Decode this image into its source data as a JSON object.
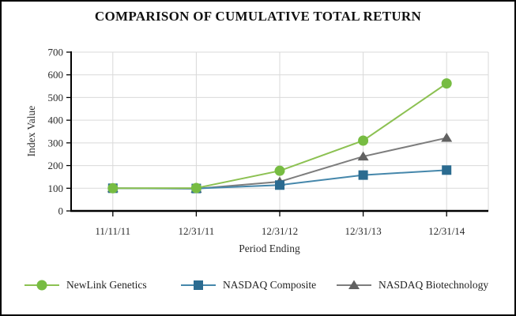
{
  "window": {
    "background": "#ffffff",
    "border_color": "#000000"
  },
  "chart_data": {
    "type": "line",
    "title": "COMPARISON OF CUMULATIVE TOTAL RETURN",
    "xlabel": "Period Ending",
    "ylabel": "Index Value",
    "categories": [
      "11/11/11",
      "12/31/11",
      "12/31/12",
      "12/31/13",
      "12/31/14"
    ],
    "ylim": [
      0,
      700
    ],
    "ytick_step": 100,
    "grid": "on",
    "grid_color": "#d9d9d9",
    "axis_color": "#000000",
    "legend_position": "bottom",
    "series": [
      {
        "name": "NewLink Genetics",
        "marker": "circle",
        "marker_color": "#77bc42",
        "line_color": "#8cc152",
        "values": [
          100,
          101,
          177,
          310,
          562
        ]
      },
      {
        "name": "NASDAQ Composite",
        "marker": "square",
        "marker_color": "#2b6b90",
        "line_color": "#4587ab",
        "values": [
          100,
          99,
          114,
          158,
          180
        ]
      },
      {
        "name": "NASDAQ Biotechnology",
        "marker": "triangle",
        "marker_color": "#616161",
        "line_color": "#7d7d7d",
        "values": [
          100,
          98,
          129,
          240,
          322
        ]
      }
    ]
  }
}
